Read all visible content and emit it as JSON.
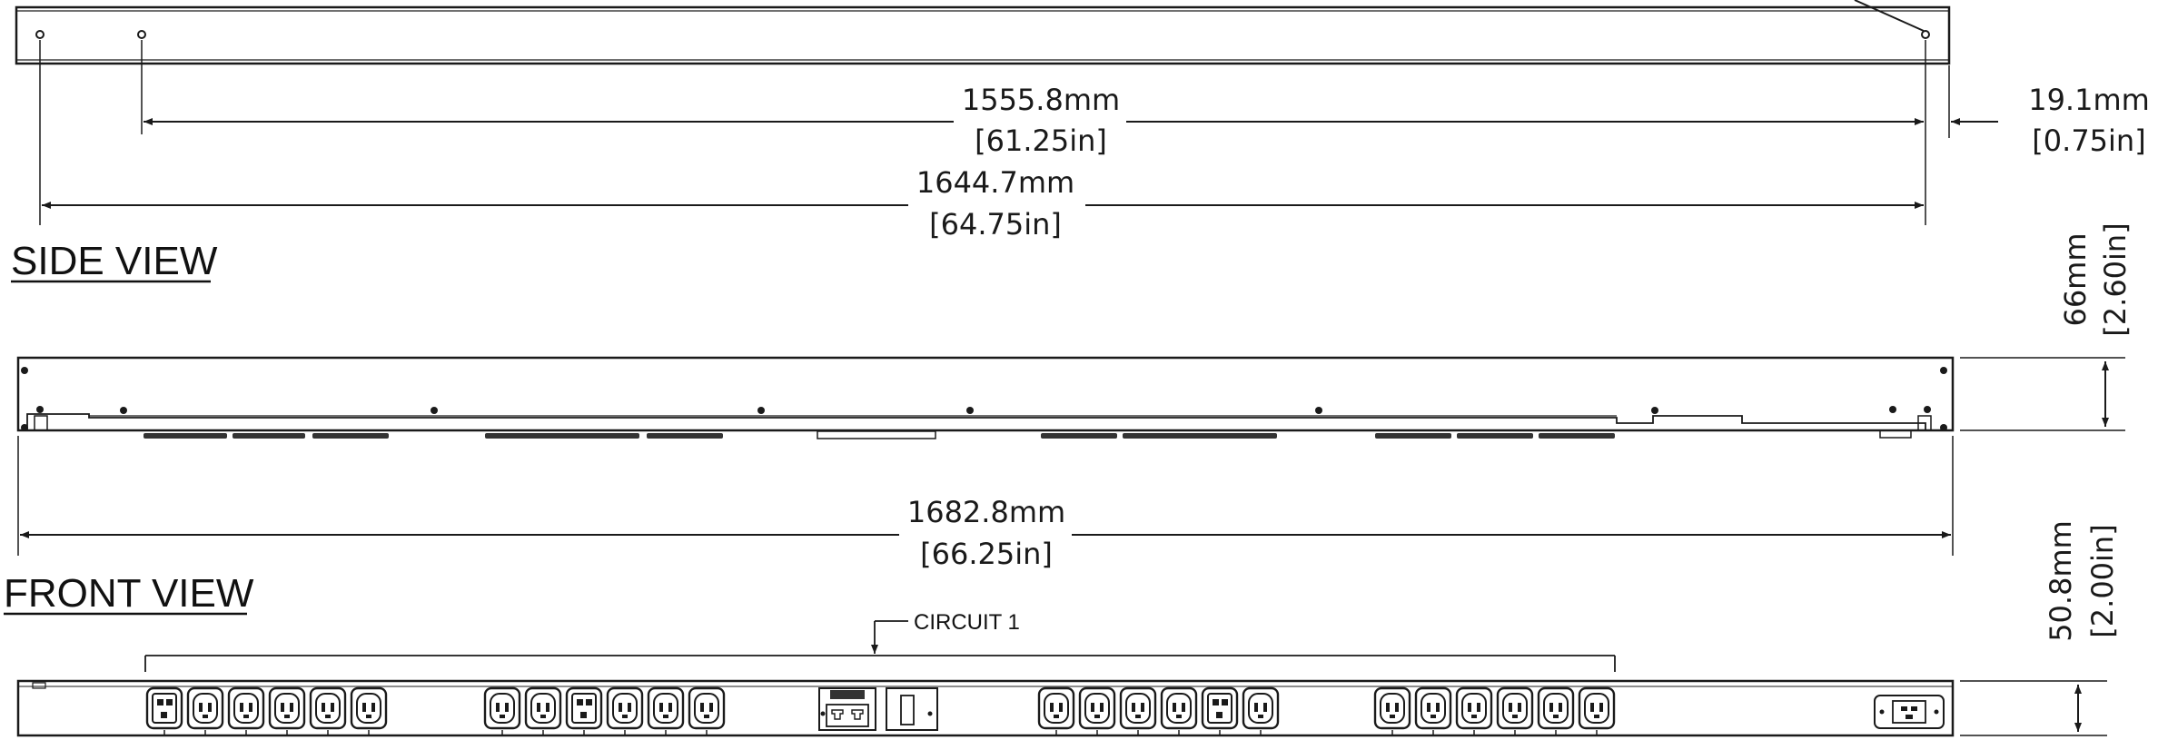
{
  "views": {
    "side": "SIDE VIEW",
    "front": "FRONT VIEW"
  },
  "dimensions": {
    "hole_spacing_mm": "1555.8mm",
    "hole_spacing_in": "[61.25in]",
    "overall_length_mm": "1644.7mm",
    "overall_length_in": "[64.75in]",
    "offset_mm": "19.1mm",
    "offset_in": "[0.75in]",
    "height_mm": "66mm",
    "height_in": "[2.60in]",
    "front_length_mm": "1682.8mm",
    "front_length_in": "[66.25in]",
    "depth_mm": "50.8mm",
    "depth_in": "[2.00in]"
  },
  "labels": {
    "circuit": "CIRCUIT 1"
  },
  "colors": {
    "line": "#1a1a1a",
    "background": "#ffffff"
  }
}
